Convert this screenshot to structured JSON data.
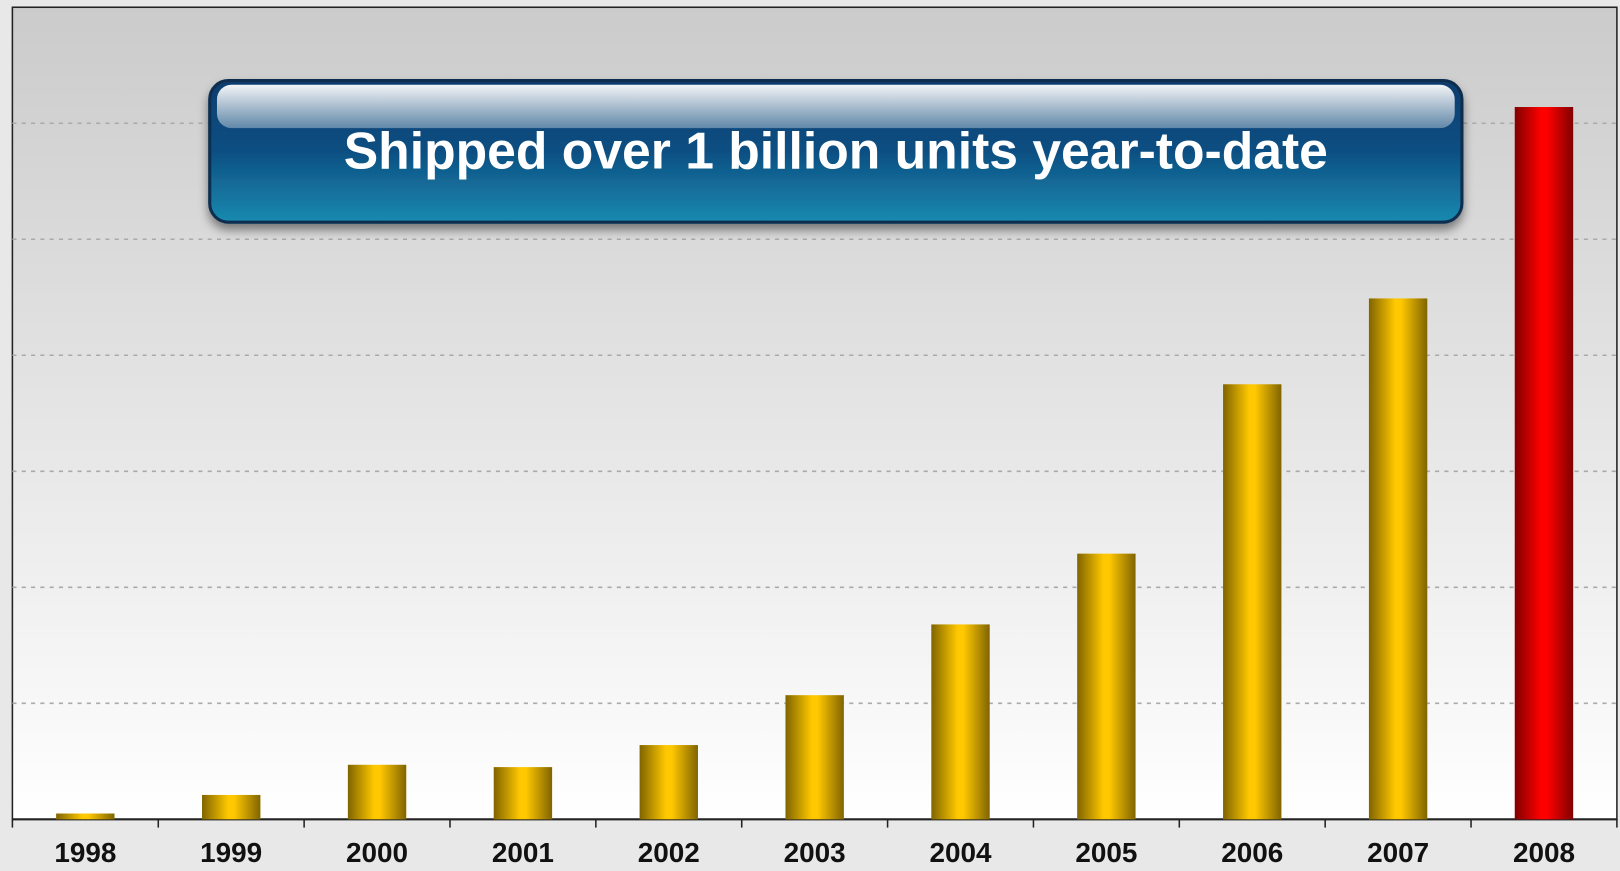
{
  "chart_data": {
    "type": "bar",
    "annotation": "Shipped over 1 billion units year-to-date",
    "categories": [
      "1998",
      "1999",
      "2000",
      "2001",
      "2002",
      "2003",
      "2004",
      "2005",
      "2006",
      "2007",
      "2008"
    ],
    "values": [
      0.05,
      0.21,
      0.47,
      0.45,
      0.64,
      1.07,
      1.68,
      2.29,
      3.75,
      4.49,
      6.14
    ],
    "colors": [
      "#ffc800",
      "#ffc800",
      "#ffc800",
      "#ffc800",
      "#ffc800",
      "#ffc800",
      "#ffc800",
      "#ffc800",
      "#ffc800",
      "#ffc800",
      "#ff0000"
    ],
    "ylim": [
      0,
      7
    ],
    "yticks": [
      1,
      2,
      3,
      4,
      5,
      6
    ],
    "grid": true
  }
}
